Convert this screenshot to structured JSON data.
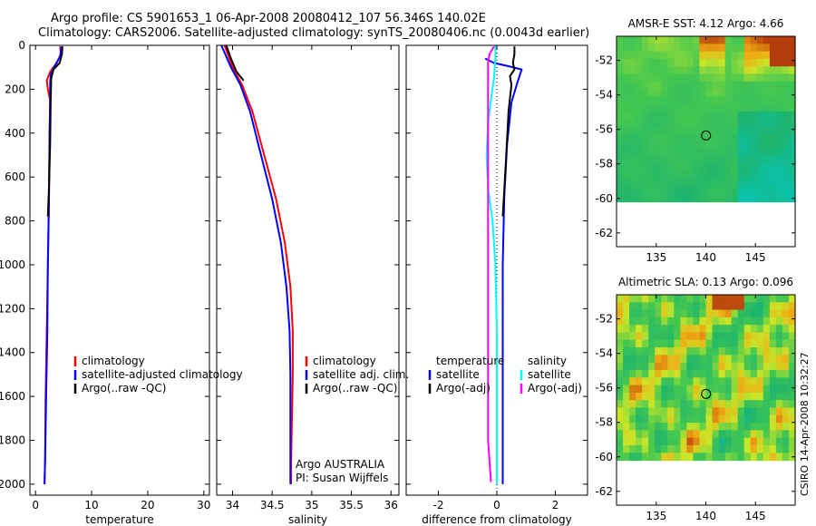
{
  "header": {
    "line1": "Argo profile: CS 5901653_1 06-Apr-2008 20080412_107 56.346S 140.02E",
    "line2": "Climatology: CARS2006. Satellite-adjusted climatology: synTS_20080406.nc (0.0043d earlier)"
  },
  "credit": "CSIRO 14-Apr-2008 10:32:27",
  "colors": {
    "climatology": "#ff0000",
    "satellite": "#0000ff",
    "argo": "#000000",
    "argo_adj_sal": "#ff00ff",
    "satellite_sal": "#00ffff"
  },
  "chart_data": [
    {
      "type": "line",
      "title": "",
      "xlabel": "temperature",
      "ylabel": "",
      "xlim": [
        -1,
        31
      ],
      "ylim": [
        2050,
        0
      ],
      "xticks": [
        0,
        10,
        20,
        30
      ],
      "yticks": [
        0,
        200,
        400,
        600,
        800,
        1000,
        1200,
        1400,
        1600,
        1800,
        2000
      ],
      "legend": [
        "climatology",
        "satellite-adjusted climatology",
        "Argo(..raw -QC)"
      ],
      "series": [
        {
          "name": "climatology",
          "color": "#ff0000",
          "x": [
            4.4,
            4.5,
            3.8,
            2.6,
            2.0,
            2.2,
            2.6,
            2.5,
            2.4,
            2.2,
            2.0,
            1.8,
            1.7,
            1.6
          ],
          "y": [
            5,
            40,
            80,
            120,
            160,
            200,
            250,
            400,
            700,
            1000,
            1300,
            1600,
            1900,
            2000
          ]
        },
        {
          "name": "satellite-adjusted climatology",
          "color": "#0000ff",
          "x": [
            4.6,
            4.4,
            3.5,
            2.7,
            2.6,
            2.6,
            2.5,
            2.4,
            2.2,
            2.1,
            1.9,
            1.7,
            1.6
          ],
          "y": [
            5,
            50,
            90,
            130,
            180,
            250,
            400,
            700,
            1000,
            1300,
            1600,
            1900,
            2000
          ]
        },
        {
          "name": "Argo(..raw -QC)",
          "color": "#000000",
          "x": [
            4.8,
            4.7,
            4.3,
            3.2,
            2.8,
            2.7,
            2.6,
            2.4,
            2.2
          ],
          "y": [
            5,
            40,
            80,
            110,
            150,
            250,
            450,
            650,
            780
          ]
        }
      ]
    },
    {
      "type": "line",
      "title": "",
      "xlabel": "salinity",
      "ylabel": "",
      "xlim": [
        33.8,
        36.1
      ],
      "ylim": [
        2050,
        0
      ],
      "xticks": [
        34,
        34.5,
        35,
        35.5,
        36
      ],
      "yticks": [
        0,
        200,
        400,
        600,
        800,
        1000,
        1200,
        1400,
        1600,
        1800,
        2000
      ],
      "legend": [
        "climatology",
        "satellite adj. clim.",
        "Argo(..raw -QC)"
      ],
      "annotation": [
        "Argo AUSTRALIA",
        "PI: Susan Wijffels"
      ],
      "series": [
        {
          "name": "climatology",
          "color": "#ff0000",
          "x": [
            33.9,
            34.0,
            34.12,
            34.25,
            34.4,
            34.55,
            34.66,
            34.73,
            34.76,
            34.76,
            34.75,
            34.74,
            34.74
          ],
          "y": [
            0,
            100,
            180,
            300,
            500,
            700,
            900,
            1100,
            1300,
            1500,
            1700,
            1900,
            2000
          ]
        },
        {
          "name": "satellite adj. clim.",
          "color": "#0000ff",
          "x": [
            33.86,
            33.98,
            34.1,
            34.22,
            34.36,
            34.5,
            34.61,
            34.68,
            34.72,
            34.73,
            34.73,
            34.73,
            34.73
          ],
          "y": [
            0,
            100,
            180,
            300,
            500,
            700,
            900,
            1100,
            1300,
            1500,
            1700,
            1900,
            2000
          ]
        },
        {
          "name": "Argo(..raw -QC)",
          "color": "#000000",
          "x": [
            33.92,
            33.98,
            34.05,
            34.14
          ],
          "y": [
            0,
            60,
            120,
            160
          ]
        }
      ]
    },
    {
      "type": "line",
      "title": "",
      "xlabel": "difference from climatology",
      "ylabel": "",
      "xlim": [
        -3.1,
        3.1
      ],
      "ylim": [
        2050,
        0
      ],
      "xticks": [
        -2,
        0,
        2
      ],
      "yticks": [
        0,
        200,
        400,
        600,
        800,
        1000,
        1200,
        1400,
        1600,
        1800,
        2000
      ],
      "legend_left_title": "temperature",
      "legend_right_title": "salinity",
      "legend_left": [
        "satellite",
        "Argo(-adj)"
      ],
      "legend_right": [
        "satellite",
        "Argo(-adj)"
      ],
      "series": [
        {
          "name": "temperature satellite",
          "color": "#0000ff",
          "x": [
            -0.4,
            -0.1,
            0.4,
            0.85,
            0.7,
            0.5,
            0.35,
            0.25,
            0.2,
            0.2,
            0.2,
            0.2,
            0.2
          ],
          "y": [
            60,
            80,
            95,
            110,
            170,
            260,
            450,
            700,
            1000,
            1300,
            1600,
            1900,
            2000
          ]
        },
        {
          "name": "temperature Argo(-adj)",
          "color": "#000000",
          "x": [
            0.6,
            0.6,
            0.55,
            0.6,
            0.45,
            0.5,
            0.4,
            0.3,
            0.2
          ],
          "y": [
            5,
            40,
            80,
            110,
            140,
            180,
            300,
            550,
            780
          ]
        },
        {
          "name": "salinity satellite",
          "color": "#00ffff",
          "x": [
            -0.05,
            -0.05,
            -0.1,
            -0.2,
            -0.3,
            -0.35,
            -0.3,
            -0.15,
            -0.05,
            0.0,
            0.0,
            0.0,
            0.0
          ],
          "y": [
            0,
            60,
            150,
            250,
            350,
            500,
            650,
            800,
            1000,
            1300,
            1600,
            1900,
            2000
          ]
        },
        {
          "name": "salinity Argo(-adj)",
          "color": "#ff00ff",
          "x": [
            -0.1,
            -0.25,
            -0.3,
            -0.3,
            -0.3,
            -0.3,
            -0.2
          ],
          "y": [
            5,
            40,
            80,
            1200,
            1500,
            1800,
            1990
          ]
        }
      ]
    },
    {
      "type": "heatmap",
      "title": "AMSR-E SST: 4.12 Argo: 4.66",
      "xlabel": "",
      "ylabel": "",
      "xlim": [
        131,
        149
      ],
      "ylim": [
        -62.8,
        -50.6
      ],
      "xticks": [
        135,
        140,
        145
      ],
      "yticks": [
        -52,
        -54,
        -56,
        -58,
        -60,
        -62
      ],
      "marker": {
        "x": 140.02,
        "y": -56.35
      },
      "data_extent": {
        "lat_min": -60.2,
        "lat_max": -50.6
      }
    },
    {
      "type": "heatmap",
      "title": "Altimetric SLA: 0.13 Argo: 0.096",
      "xlabel": "",
      "ylabel": "",
      "xlim": [
        131,
        149
      ],
      "ylim": [
        -62.8,
        -50.6
      ],
      "xticks": [
        135,
        140,
        145
      ],
      "yticks": [
        -52,
        -54,
        -56,
        -58,
        -60,
        -62
      ],
      "marker": {
        "x": 140.02,
        "y": -56.35
      },
      "data_extent": {
        "lat_min": -60.2,
        "lat_max": -50.6
      }
    }
  ]
}
